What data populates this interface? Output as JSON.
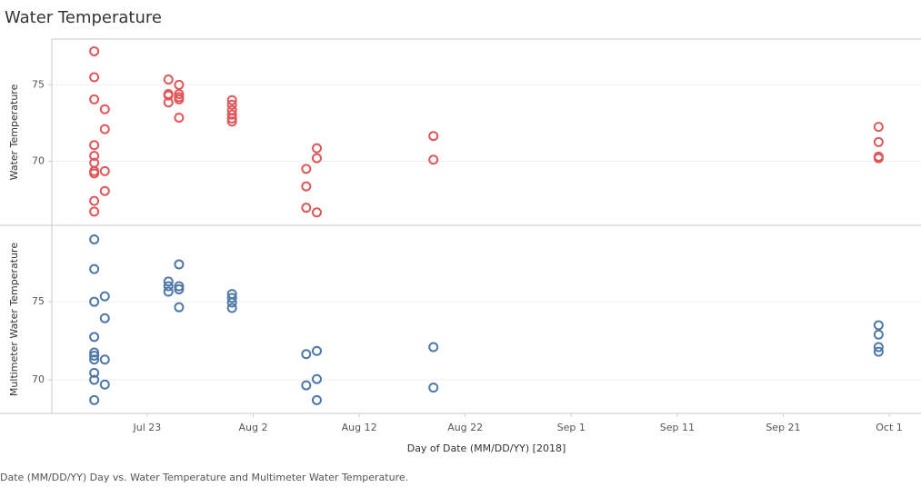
{
  "chart_data": {
    "type": "scatter",
    "title": "Water Temperature",
    "x_label": "Day of Date (MM/DD/YY) [2018]",
    "caption": "Date (MM/DD/YY) Day vs. Water Temperature and Multimeter Water Temperature.",
    "xlim": [
      "2018-07-14",
      "2018-10-04"
    ],
    "xticks": [
      {
        "value": "2018-07-23",
        "label": "Jul 23"
      },
      {
        "value": "2018-08-02",
        "label": "Aug 2"
      },
      {
        "value": "2018-08-12",
        "label": "Aug 12"
      },
      {
        "value": "2018-08-22",
        "label": "Aug 22"
      },
      {
        "value": "2018-09-01",
        "label": "Sep 1"
      },
      {
        "value": "2018-09-11",
        "label": "Sep 11"
      },
      {
        "value": "2018-09-21",
        "label": "Sep 21"
      },
      {
        "value": "2018-10-01",
        "label": "Oct 1"
      }
    ],
    "grid": true,
    "panes": [
      {
        "y_label": "Water Temperature",
        "color": "#e15759",
        "ylim": [
          65.8,
          78.0
        ],
        "yticks": [
          70,
          75
        ],
        "x": [
          "2018-07-18",
          "2018-07-18",
          "2018-07-18",
          "2018-07-18",
          "2018-07-18",
          "2018-07-18",
          "2018-07-18",
          "2018-07-18",
          "2018-07-18",
          "2018-07-18",
          "2018-07-19",
          "2018-07-19",
          "2018-07-19",
          "2018-07-19",
          "2018-07-25",
          "2018-07-25",
          "2018-07-25",
          "2018-07-25",
          "2018-07-26",
          "2018-07-26",
          "2018-07-26",
          "2018-07-26",
          "2018-07-26",
          "2018-07-31",
          "2018-07-31",
          "2018-07-31",
          "2018-07-31",
          "2018-07-31",
          "2018-07-31",
          "2018-08-07",
          "2018-08-07",
          "2018-08-07",
          "2018-08-08",
          "2018-08-08",
          "2018-08-08",
          "2018-08-19",
          "2018-08-19",
          "2018-09-30",
          "2018-09-30",
          "2018-09-30",
          "2018-09-30"
        ],
        "values": [
          77.2,
          75.5,
          74.05,
          71.05,
          70.35,
          69.9,
          69.35,
          69.2,
          67.4,
          66.7,
          73.4,
          72.1,
          69.35,
          68.05,
          75.35,
          74.4,
          74.3,
          73.85,
          75.0,
          74.4,
          74.2,
          74.05,
          72.85,
          74.0,
          73.7,
          73.35,
          73.05,
          72.8,
          72.6,
          69.5,
          68.35,
          66.95,
          70.85,
          70.2,
          66.65,
          71.65,
          70.1,
          72.25,
          71.25,
          70.3,
          70.2
        ]
      },
      {
        "y_label": "Multimeter Water Temperature",
        "color": "#4e79a7",
        "ylim": [
          67.85,
          79.9
        ],
        "yticks": [
          70,
          75
        ],
        "x": [
          "2018-07-18",
          "2018-07-18",
          "2018-07-18",
          "2018-07-18",
          "2018-07-18",
          "2018-07-18",
          "2018-07-18",
          "2018-07-18",
          "2018-07-18",
          "2018-07-18",
          "2018-07-19",
          "2018-07-19",
          "2018-07-19",
          "2018-07-19",
          "2018-07-25",
          "2018-07-25",
          "2018-07-25",
          "2018-07-26",
          "2018-07-26",
          "2018-07-26",
          "2018-07-26",
          "2018-07-31",
          "2018-07-31",
          "2018-07-31",
          "2018-07-31",
          "2018-08-07",
          "2018-08-07",
          "2018-08-08",
          "2018-08-08",
          "2018-08-08",
          "2018-08-19",
          "2018-08-19",
          "2018-09-30",
          "2018-09-30",
          "2018-09-30",
          "2018-09-30"
        ],
        "values": [
          79.0,
          77.1,
          75.0,
          72.75,
          71.75,
          71.55,
          71.3,
          70.45,
          70.0,
          68.7,
          75.35,
          73.95,
          71.3,
          69.7,
          76.3,
          76.0,
          75.65,
          77.4,
          76.0,
          75.8,
          74.65,
          75.5,
          75.25,
          74.95,
          74.6,
          71.65,
          69.65,
          71.85,
          70.05,
          68.7,
          72.1,
          69.5,
          73.5,
          72.9,
          72.1,
          71.8
        ]
      }
    ]
  }
}
